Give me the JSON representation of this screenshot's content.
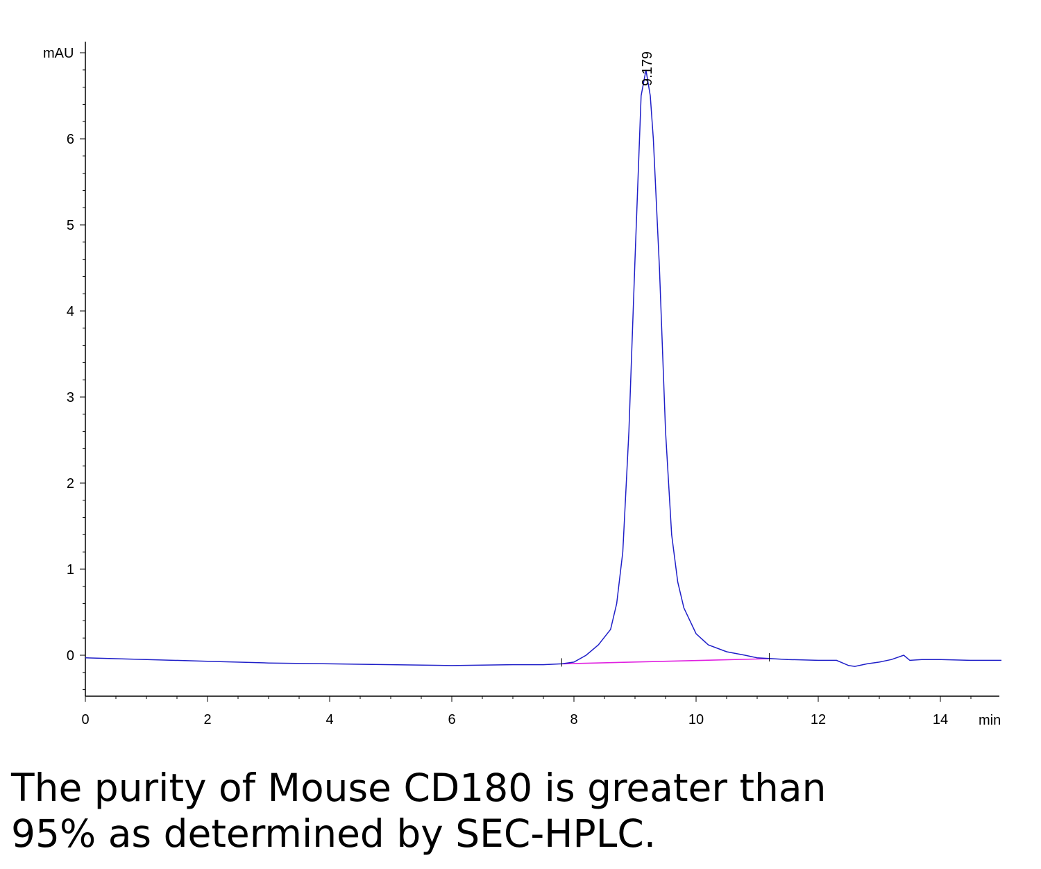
{
  "chart_data": {
    "type": "line",
    "title": "",
    "xlabel": "min",
    "ylabel": "mAU",
    "xlim": [
      0,
      15
    ],
    "ylim": [
      -0.48,
      7.0
    ],
    "x_ticks": [
      "0",
      "2",
      "4",
      "6",
      "8",
      "10",
      "12",
      "14"
    ],
    "y_ticks": [
      "0",
      "1",
      "2",
      "3",
      "4",
      "5",
      "6"
    ],
    "grid": false,
    "colors": {
      "signal": "#1f1fc8",
      "baseline": "#e020e0",
      "axis": "#000000"
    },
    "series": [
      {
        "x": [
          0,
          1,
          2,
          3,
          4,
          5,
          6,
          7,
          7.5,
          7.8,
          8.0,
          8.2,
          8.4,
          8.6,
          8.7,
          8.8,
          8.9,
          9.0,
          9.1,
          9.179,
          9.25,
          9.3,
          9.4,
          9.5,
          9.6,
          9.7,
          9.8,
          10.0,
          10.2,
          10.5,
          10.8,
          11.0,
          11.5,
          12.0,
          12.3,
          12.5,
          12.6,
          12.8,
          13.0,
          13.2,
          13.4,
          13.5,
          13.7,
          14.0,
          14.5,
          15.0
        ],
        "values": [
          -0.03,
          -0.05,
          -0.07,
          -0.09,
          -0.1,
          -0.11,
          -0.12,
          -0.11,
          -0.11,
          -0.1,
          -0.08,
          0.0,
          0.12,
          0.3,
          0.6,
          1.2,
          2.6,
          4.6,
          6.5,
          6.8,
          6.5,
          6.0,
          4.5,
          2.6,
          1.4,
          0.85,
          0.55,
          0.25,
          0.12,
          0.04,
          0.0,
          -0.03,
          -0.05,
          -0.06,
          -0.06,
          -0.12,
          -0.13,
          -0.1,
          -0.08,
          -0.05,
          0.0,
          -0.06,
          -0.05,
          -0.05,
          -0.06,
          -0.06
        ]
      }
    ],
    "baseline": {
      "x": [
        7.8,
        11.2
      ],
      "values": [
        -0.1,
        -0.04
      ]
    },
    "annotations": [
      {
        "text": "9.179",
        "x": 9.179
      }
    ]
  },
  "caption_lines": [
    "The purity of Mouse CD180 is greater than",
    "95% as determined by SEC-HPLC."
  ]
}
